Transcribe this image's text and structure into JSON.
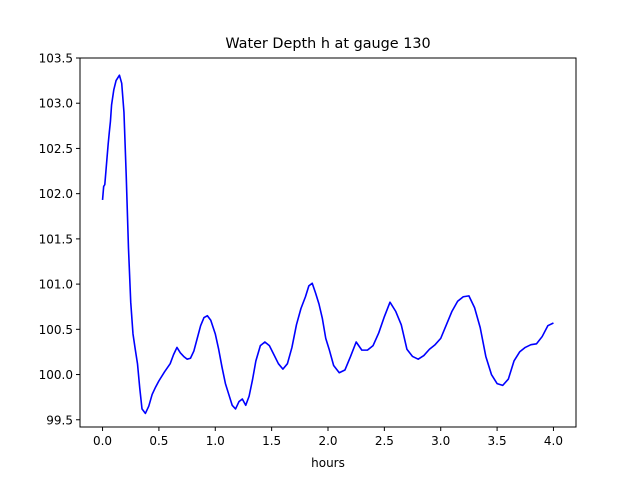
{
  "chart_data": {
    "type": "line",
    "title": "Water Depth h at gauge 130",
    "xlabel": "hours",
    "ylabel": "",
    "xlim": [
      -0.2,
      4.2
    ],
    "ylim": [
      99.42,
      103.5
    ],
    "grid": false,
    "xticks": [
      0.0,
      0.5,
      1.0,
      1.5,
      2.0,
      2.5,
      3.0,
      3.5,
      4.0
    ],
    "xtick_labels": [
      "0.0",
      "0.5",
      "1.0",
      "1.5",
      "2.0",
      "2.5",
      "3.0",
      "3.5",
      "4.0"
    ],
    "yticks": [
      99.5,
      100.0,
      100.5,
      101.0,
      101.5,
      102.0,
      102.5,
      103.0,
      103.5
    ],
    "ytick_labels": [
      "99.5",
      "100.0",
      "100.5",
      "101.0",
      "101.5",
      "102.0",
      "102.5",
      "103.0",
      "103.5"
    ],
    "line_color": "#0000ff",
    "series": [
      {
        "x": [
          0.0,
          0.01,
          0.02,
          0.03,
          0.04,
          0.05,
          0.06,
          0.07,
          0.08,
          0.1,
          0.12,
          0.15,
          0.17,
          0.19,
          0.21,
          0.23,
          0.25,
          0.27,
          0.29,
          0.31,
          0.33,
          0.35,
          0.38,
          0.41,
          0.44,
          0.47,
          0.5,
          0.55,
          0.6,
          0.63,
          0.66,
          0.69,
          0.72,
          0.75,
          0.78,
          0.81,
          0.84,
          0.87,
          0.9,
          0.93,
          0.96,
          1.0,
          1.03,
          1.06,
          1.09,
          1.12,
          1.15,
          1.18,
          1.21,
          1.24,
          1.27,
          1.3,
          1.33,
          1.36,
          1.4,
          1.44,
          1.48,
          1.52,
          1.56,
          1.6,
          1.64,
          1.68,
          1.72,
          1.76,
          1.8,
          1.83,
          1.86,
          1.89,
          1.92,
          1.95,
          1.98,
          2.01,
          2.05,
          2.1,
          2.15,
          2.2,
          2.25,
          2.3,
          2.35,
          2.4,
          2.45,
          2.5,
          2.55,
          2.6,
          2.65,
          2.7,
          2.75,
          2.8,
          2.85,
          2.9,
          2.95,
          3.0,
          3.05,
          3.1,
          3.15,
          3.2,
          3.25,
          3.3,
          3.35,
          3.4,
          3.45,
          3.5,
          3.55,
          3.6,
          3.65,
          3.7,
          3.75,
          3.8,
          3.85,
          3.9,
          3.95,
          4.0
        ],
        "y": [
          101.93,
          102.08,
          102.1,
          102.25,
          102.4,
          102.55,
          102.68,
          102.8,
          102.98,
          103.15,
          103.25,
          103.31,
          103.22,
          102.9,
          102.2,
          101.4,
          100.8,
          100.45,
          100.28,
          100.12,
          99.85,
          99.62,
          99.57,
          99.65,
          99.78,
          99.86,
          99.93,
          100.03,
          100.12,
          100.22,
          100.3,
          100.24,
          100.2,
          100.17,
          100.18,
          100.26,
          100.4,
          100.54,
          100.63,
          100.65,
          100.6,
          100.45,
          100.28,
          100.08,
          99.9,
          99.78,
          99.66,
          99.62,
          99.7,
          99.73,
          99.66,
          99.76,
          99.94,
          100.15,
          100.32,
          100.36,
          100.32,
          100.22,
          100.12,
          100.06,
          100.12,
          100.3,
          100.55,
          100.73,
          100.86,
          100.98,
          101.01,
          100.9,
          100.78,
          100.62,
          100.4,
          100.28,
          100.1,
          100.02,
          100.05,
          100.2,
          100.36,
          100.27,
          100.27,
          100.32,
          100.46,
          100.64,
          100.8,
          100.7,
          100.55,
          100.28,
          100.2,
          100.17,
          100.21,
          100.28,
          100.33,
          100.4,
          100.55,
          100.7,
          100.81,
          100.86,
          100.87,
          100.74,
          100.52,
          100.2,
          100.0,
          99.9,
          99.88,
          99.95,
          100.15,
          100.25,
          100.3,
          100.33,
          100.34,
          100.42,
          100.54,
          100.57
        ]
      }
    ]
  }
}
